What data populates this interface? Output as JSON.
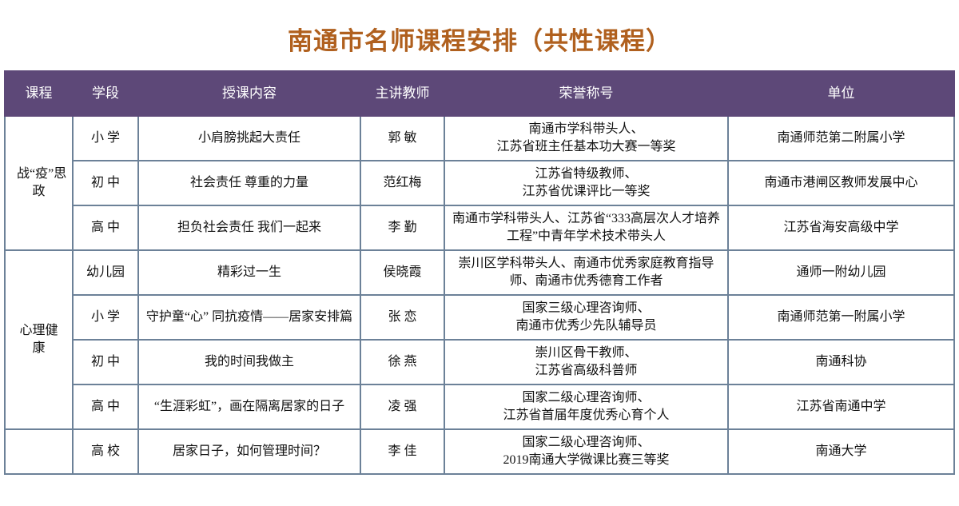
{
  "title": "南通市名师课程安排（共性课程）",
  "colors": {
    "title": "#b0601e",
    "header_bg": "#5d4878",
    "border": "#6c8198"
  },
  "headers": [
    "课程",
    "学段",
    "授课内容",
    "主讲教师",
    "荣誉称号",
    "单位"
  ],
  "groups": [
    {
      "course": "战“疫”思政",
      "rows": [
        {
          "stage": "小 学",
          "content": "小肩膀挑起大责任",
          "teacher": "郭 敏",
          "honor": "南通市学科带头人、\n江苏省班主任基本功大赛一等奖",
          "unit": "南通师范第二附属小学"
        },
        {
          "stage": "初 中",
          "content": "社会责任 尊重的力量",
          "teacher": "范红梅",
          "honor": "江苏省特级教师、\n江苏省优课评比一等奖",
          "unit": "南通市港闸区教师发展中心"
        },
        {
          "stage": "高 中",
          "content": "担负社会责任 我们一起来",
          "teacher": "李 勤",
          "honor": "南通市学科带头人、江苏省“333高层次人才培养工程”中青年学术技术带头人",
          "unit": "江苏省海安高级中学"
        }
      ]
    },
    {
      "course": "心理健康",
      "rows": [
        {
          "stage": "幼儿园",
          "content": "精彩过一生",
          "teacher": "侯晓霞",
          "honor": "崇川区学科带头人、南通市优秀家庭教育指导师、南通市优秀德育工作者",
          "unit": "通师一附幼儿园"
        },
        {
          "stage": "小 学",
          "content": "守护童“心” 同抗疫情——居家安排篇",
          "teacher": "张 恋",
          "honor": "国家三级心理咨询师、\n南通市优秀少先队辅导员",
          "unit": "南通师范第一附属小学"
        },
        {
          "stage": "初 中",
          "content": "我的时间我做主",
          "teacher": "徐 燕",
          "honor": "崇川区骨干教师、\n江苏省高级科普师",
          "unit": "南通科协"
        },
        {
          "stage": "高 中",
          "content": "“生涯彩虹”，画在隔离居家的日子",
          "teacher": "凌 强",
          "honor": "国家二级心理咨询师、\n江苏省首届年度优秀心育个人",
          "unit": "江苏省南通中学"
        }
      ]
    },
    {
      "course": "",
      "rows": [
        {
          "stage": "高 校",
          "content": "居家日子，如何管理时间？",
          "teacher": "李 佳",
          "honor": "国家二级心理咨询师、\n2019南通大学微课比赛三等奖",
          "unit": "南通大学"
        }
      ]
    }
  ]
}
